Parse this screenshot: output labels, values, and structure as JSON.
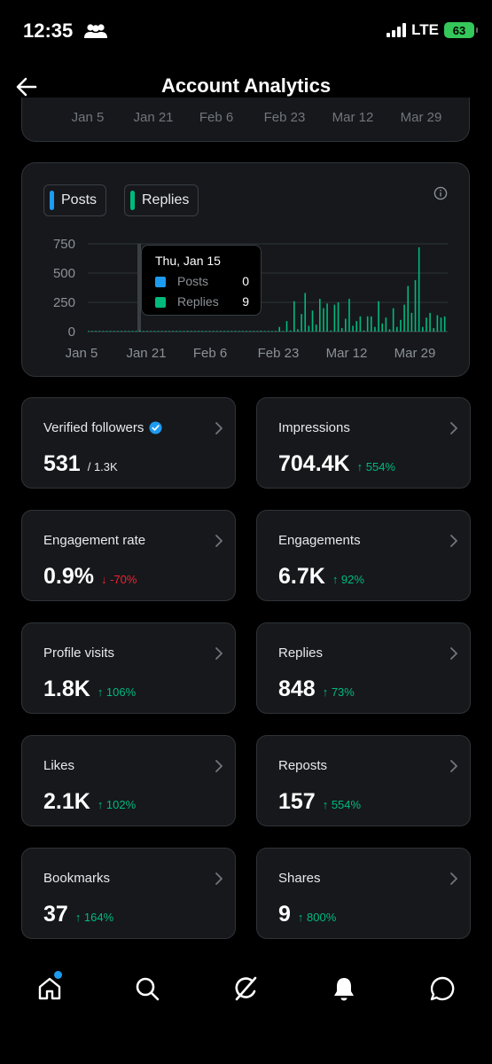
{
  "status": {
    "time": "12:35",
    "network": "LTE",
    "battery": "63"
  },
  "header": {
    "title": "Account Analytics"
  },
  "top_axis": [
    "Jan 5",
    "Jan 21",
    "Feb 6",
    "Feb 23",
    "Mar 12",
    "Mar 29"
  ],
  "legend": {
    "posts": "Posts",
    "replies": "Replies"
  },
  "colors": {
    "posts": "#1d9bf0",
    "replies": "#00ba7c",
    "up": "#00ba7c",
    "down": "#f4212e"
  },
  "tooltip": {
    "date": "Thu, Jan 15",
    "posts_label": "Posts",
    "posts_value": "0",
    "replies_label": "Replies",
    "replies_value": "9"
  },
  "chart_data": {
    "type": "bar",
    "y_ticks": [
      "750",
      "500",
      "250",
      "0"
    ],
    "x_ticks": [
      "Jan 5",
      "Jan 21",
      "Feb 6",
      "Feb 23",
      "Mar 12",
      "Mar 29"
    ],
    "ylim": [
      0,
      750
    ],
    "series": [
      {
        "name": "Posts",
        "values": []
      },
      {
        "name": "Replies",
        "values": [
          2,
          0,
          6,
          2,
          0,
          3,
          0,
          1,
          0,
          0,
          2,
          1,
          0,
          3,
          9,
          1,
          4,
          0,
          2,
          1,
          5,
          0,
          6,
          2,
          0,
          1,
          3,
          8,
          2,
          1,
          0,
          4,
          2,
          5,
          1,
          0,
          3,
          2,
          6,
          1,
          7,
          0,
          5,
          2,
          4,
          1,
          3,
          8,
          2,
          6,
          1,
          2,
          40,
          5,
          90,
          10,
          260,
          20,
          150,
          330,
          50,
          180,
          60,
          280,
          200,
          240,
          10,
          230,
          250,
          30,
          110,
          280,
          50,
          90,
          130,
          10,
          130,
          130,
          40,
          260,
          70,
          120,
          20,
          200,
          40,
          100,
          230,
          390,
          160,
          440,
          720,
          40,
          120,
          160,
          30,
          140,
          120,
          130
        ]
      }
    ],
    "highlight_index": 14
  },
  "metrics": [
    {
      "label": "Verified followers",
      "value": "531",
      "extra": "/ 1.3K",
      "kind": "neutral",
      "verified": true
    },
    {
      "label": "Impressions",
      "value": "704.4K",
      "extra": "↑ 554%",
      "kind": "up"
    },
    {
      "label": "Engagement rate",
      "value": "0.9%",
      "extra": "↓ -70%",
      "kind": "down"
    },
    {
      "label": "Engagements",
      "value": "6.7K",
      "extra": "↑ 92%",
      "kind": "up"
    },
    {
      "label": "Profile visits",
      "value": "1.8K",
      "extra": "↑ 106%",
      "kind": "up"
    },
    {
      "label": "Replies",
      "value": "848",
      "extra": "↑ 73%",
      "kind": "up"
    },
    {
      "label": "Likes",
      "value": "2.1K",
      "extra": "↑ 102%",
      "kind": "up"
    },
    {
      "label": "Reposts",
      "value": "157",
      "extra": "↑ 554%",
      "kind": "up"
    },
    {
      "label": "Bookmarks",
      "value": "37",
      "extra": "↑ 164%",
      "kind": "up"
    },
    {
      "label": "Shares",
      "value": "9",
      "extra": "↑ 800%",
      "kind": "up"
    }
  ],
  "nav": [
    "home-icon",
    "search-icon",
    "grok-icon",
    "notifications-icon",
    "messages-icon"
  ]
}
